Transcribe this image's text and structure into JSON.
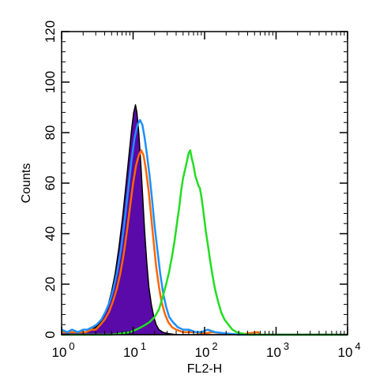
{
  "chart_data": {
    "type": "histogram",
    "xlabel": "FL2-H",
    "ylabel": "Counts",
    "x_scale": "log",
    "xlim": [
      1,
      10000
    ],
    "ylim": [
      0,
      120
    ],
    "x_ticks": [
      {
        "value": 1,
        "base": "10",
        "exp": "0"
      },
      {
        "value": 10,
        "base": "10",
        "exp": "1"
      },
      {
        "value": 100,
        "base": "10",
        "exp": "2"
      },
      {
        "value": 1000,
        "base": "10",
        "exp": "3"
      },
      {
        "value": 10000,
        "base": "10",
        "exp": "4"
      }
    ],
    "y_ticks": [
      0,
      20,
      40,
      60,
      80,
      100,
      120
    ],
    "grid": false,
    "legend": "none",
    "series": [
      {
        "color": "#5a0aa8",
        "edge_color": "#000000",
        "style": "filled",
        "points": [
          [
            1,
            1
          ],
          [
            1.2,
            1
          ],
          [
            1.4,
            1
          ],
          [
            1.7,
            1
          ],
          [
            2,
            1
          ],
          [
            2.3,
            1
          ],
          [
            2.6,
            2
          ],
          [
            3,
            3
          ],
          [
            3.5,
            5
          ],
          [
            4,
            8
          ],
          [
            4.5,
            12
          ],
          [
            5,
            17
          ],
          [
            5.6,
            24
          ],
          [
            6.3,
            34
          ],
          [
            7.1,
            46
          ],
          [
            8,
            60
          ],
          [
            8.9,
            73
          ],
          [
            9.6,
            82
          ],
          [
            10.2,
            88
          ],
          [
            10.8,
            91
          ],
          [
            11.3,
            88
          ],
          [
            12,
            80
          ],
          [
            12.8,
            68
          ],
          [
            13.6,
            55
          ],
          [
            14.5,
            41
          ],
          [
            15.5,
            29
          ],
          [
            16.6,
            19
          ],
          [
            18,
            12
          ],
          [
            19.5,
            7
          ],
          [
            21,
            4
          ],
          [
            23,
            2
          ],
          [
            26,
            1
          ],
          [
            30,
            0.5
          ],
          [
            40,
            0
          ],
          [
            10000,
            0
          ]
        ]
      },
      {
        "color": "#ff6600",
        "style": "line",
        "points": [
          [
            1,
            1
          ],
          [
            1.2,
            1
          ],
          [
            1.5,
            1
          ],
          [
            1.8,
            1
          ],
          [
            2.2,
            1
          ],
          [
            2.6,
            2
          ],
          [
            3,
            2
          ],
          [
            3.5,
            4
          ],
          [
            4,
            6
          ],
          [
            4.6,
            9
          ],
          [
            5.2,
            13
          ],
          [
            5.9,
            18
          ],
          [
            6.6,
            24
          ],
          [
            7.4,
            32
          ],
          [
            8.2,
            41
          ],
          [
            9.1,
            51
          ],
          [
            10,
            60
          ],
          [
            11,
            67
          ],
          [
            12,
            71
          ],
          [
            13,
            73
          ],
          [
            14,
            71
          ],
          [
            15,
            66
          ],
          [
            16.5,
            57
          ],
          [
            18,
            46
          ],
          [
            19.5,
            36
          ],
          [
            21,
            27
          ],
          [
            23,
            19
          ],
          [
            25,
            13
          ],
          [
            28,
            8
          ],
          [
            31,
            5
          ],
          [
            35,
            3
          ],
          [
            40,
            2
          ],
          [
            50,
            1
          ],
          [
            70,
            1
          ],
          [
            100,
            0.5
          ],
          [
            130,
            1
          ],
          [
            200,
            0.3
          ],
          [
            300,
            0
          ],
          [
            560,
            1
          ],
          [
            600,
            0
          ],
          [
            10000,
            0
          ]
        ]
      },
      {
        "color": "#1e90ff",
        "style": "line",
        "points": [
          [
            1,
            2
          ],
          [
            1.2,
            1
          ],
          [
            1.4,
            2
          ],
          [
            1.7,
            1
          ],
          [
            2,
            2
          ],
          [
            2.3,
            2
          ],
          [
            2.7,
            3
          ],
          [
            3.1,
            4
          ],
          [
            3.6,
            6
          ],
          [
            4.1,
            9
          ],
          [
            4.7,
            13
          ],
          [
            5.3,
            18
          ],
          [
            6,
            25
          ],
          [
            6.8,
            34
          ],
          [
            7.6,
            45
          ],
          [
            8.5,
            57
          ],
          [
            9.5,
            69
          ],
          [
            10.5,
            78
          ],
          [
            11.5,
            83
          ],
          [
            12.5,
            85
          ],
          [
            13.5,
            83
          ],
          [
            14.5,
            78
          ],
          [
            15.5,
            72
          ],
          [
            17,
            63
          ],
          [
            18.5,
            53
          ],
          [
            20,
            43
          ],
          [
            22,
            33
          ],
          [
            24,
            24
          ],
          [
            26.5,
            16
          ],
          [
            29,
            11
          ],
          [
            32,
            7
          ],
          [
            36,
            5
          ],
          [
            42,
            3
          ],
          [
            50,
            2
          ],
          [
            60,
            2
          ],
          [
            75,
            1
          ],
          [
            90,
            1
          ],
          [
            110,
            2
          ],
          [
            140,
            1
          ],
          [
            200,
            0.5
          ],
          [
            300,
            0
          ],
          [
            10000,
            0
          ]
        ]
      },
      {
        "color": "#22dd22",
        "style": "line",
        "points": [
          [
            1,
            0
          ],
          [
            3,
            0
          ],
          [
            5,
            0
          ],
          [
            7,
            0.5
          ],
          [
            9,
            1
          ],
          [
            11,
            2
          ],
          [
            13,
            3
          ],
          [
            15,
            4
          ],
          [
            17,
            5
          ],
          [
            20,
            7
          ],
          [
            23,
            10
          ],
          [
            26,
            15
          ],
          [
            29,
            20
          ],
          [
            32,
            25
          ],
          [
            35,
            31
          ],
          [
            38,
            37
          ],
          [
            41,
            44
          ],
          [
            44,
            50
          ],
          [
            47,
            57
          ],
          [
            50,
            62
          ],
          [
            54,
            66
          ],
          [
            57,
            69
          ],
          [
            60,
            72
          ],
          [
            63,
            73
          ],
          [
            66,
            70
          ],
          [
            70,
            67
          ],
          [
            74,
            63
          ],
          [
            78,
            61
          ],
          [
            82,
            59
          ],
          [
            86,
            58
          ],
          [
            91,
            54
          ],
          [
            97,
            48
          ],
          [
            104,
            41
          ],
          [
            112,
            35
          ],
          [
            120,
            29
          ],
          [
            130,
            23
          ],
          [
            140,
            18
          ],
          [
            155,
            13
          ],
          [
            170,
            9
          ],
          [
            190,
            6
          ],
          [
            215,
            4
          ],
          [
            245,
            2
          ],
          [
            280,
            1
          ],
          [
            330,
            0.5
          ],
          [
            400,
            0
          ],
          [
            10000,
            0
          ]
        ]
      }
    ]
  }
}
